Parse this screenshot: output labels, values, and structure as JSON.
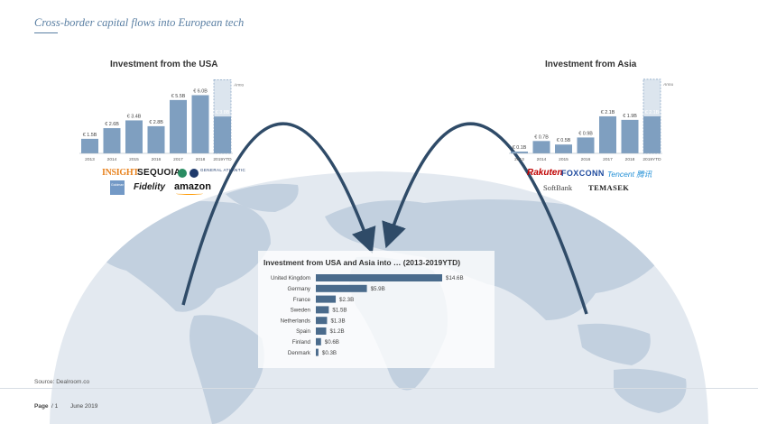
{
  "slide": {
    "title": "Cross-border capital flows into European tech",
    "source": "Source: Dealroom.co",
    "footer": {
      "page_label": "Page",
      "page_number": "/ 1",
      "date": "June 2019"
    }
  },
  "logos": {
    "usa": [
      "INSIGHT",
      "SEQUOIA",
      "GENERAL ATLANTIC",
      "Goldman Sachs",
      "Fidelity",
      "amazon"
    ],
    "asia": [
      "Rakuten",
      "FOXCONN",
      "Tencent 腾讯",
      "SoftBank",
      "TEMASEK"
    ]
  },
  "colors": {
    "bar": "#7f9fc0",
    "bar_projected": "#dce5ee",
    "arrow": "#2f4b68",
    "map_sphere": "#e3e9f0",
    "land": "#c2d0df",
    "country_bar": "#4a6b8c"
  },
  "chart_data": [
    {
      "type": "bar",
      "title": "Investment from the USA",
      "categories": [
        "2013",
        "2014",
        "2015",
        "2016",
        "2017",
        "2018",
        "2019YTD"
      ],
      "values": [
        1.5,
        2.6,
        3.4,
        2.8,
        5.5,
        6.0,
        3.8
      ],
      "data_labels": [
        "€ 1.5B",
        "€ 2.6B",
        "€ 3.4B",
        "€ 2.8B",
        "€ 5.5B",
        "€ 6.0B",
        "€ 3.8B"
      ],
      "annualised_value": 7.6,
      "annotation": "Annualised",
      "ylim": [
        0,
        8
      ],
      "grid": false
    },
    {
      "type": "bar",
      "title": "Investment from Asia",
      "categories": [
        "2013",
        "2014",
        "2015",
        "2016",
        "2017",
        "2018",
        "2019YTD"
      ],
      "values": [
        0.1,
        0.7,
        0.5,
        0.9,
        2.1,
        1.9,
        2.1
      ],
      "data_labels": [
        "€ 0.1B",
        "€ 0.7B",
        "€ 0.5B",
        "€ 0.9B",
        "€ 2.1B",
        "€ 1.9B",
        "€ 2.1B"
      ],
      "annualised_value": 4.2,
      "annotation": "Annualised",
      "ylim": [
        0,
        4.4
      ],
      "grid": false
    },
    {
      "type": "bar",
      "orientation": "horizontal",
      "title": "Investment from USA and Asia into … (2013-2019YTD)",
      "categories": [
        "United Kingdom",
        "Germany",
        "France",
        "Sweden",
        "Netherlands",
        "Spain",
        "Finland",
        "Denmark"
      ],
      "values": [
        14.6,
        5.9,
        2.3,
        1.5,
        1.3,
        1.2,
        0.6,
        0.3
      ],
      "data_labels": [
        "$14.6B",
        "$5.9B",
        "$2.3B",
        "$1.5B",
        "$1.3B",
        "$1.2B",
        "$0.6B",
        "$0.3B"
      ],
      "grid": false
    }
  ]
}
